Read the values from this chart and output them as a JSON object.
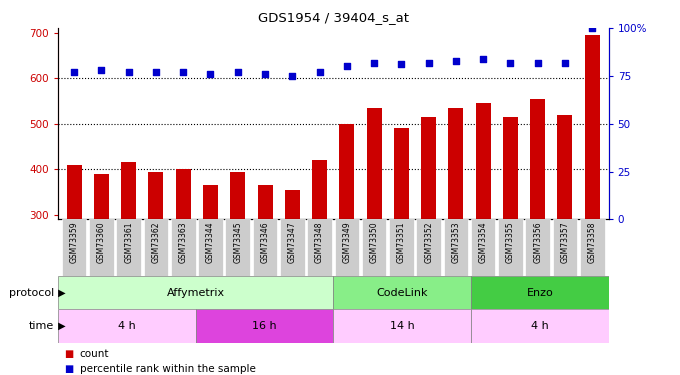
{
  "title": "GDS1954 / 39404_s_at",
  "samples": [
    "GSM73359",
    "GSM73360",
    "GSM73361",
    "GSM73362",
    "GSM73363",
    "GSM73344",
    "GSM73345",
    "GSM73346",
    "GSM73347",
    "GSM73348",
    "GSM73349",
    "GSM73350",
    "GSM73351",
    "GSM73352",
    "GSM73353",
    "GSM73354",
    "GSM73355",
    "GSM73356",
    "GSM73357",
    "GSM73358"
  ],
  "counts": [
    410,
    390,
    415,
    395,
    400,
    365,
    395,
    365,
    355,
    420,
    500,
    535,
    490,
    515,
    535,
    545,
    515,
    555,
    520,
    695
  ],
  "percentiles": [
    77,
    78,
    77,
    77,
    77,
    76,
    77,
    76,
    75,
    77,
    80,
    82,
    81,
    82,
    83,
    84,
    82,
    82,
    82,
    100
  ],
  "ylim_left": [
    290,
    710
  ],
  "ylim_right": [
    0,
    100
  ],
  "yticks_left": [
    300,
    400,
    500,
    600,
    700
  ],
  "yticks_right": [
    0,
    25,
    50,
    75,
    100
  ],
  "bar_color": "#cc0000",
  "dot_color": "#0000cc",
  "protocol_groups": [
    {
      "label": "Affymetrix",
      "start": 0,
      "end": 9,
      "color": "#ccffcc"
    },
    {
      "label": "CodeLink",
      "start": 10,
      "end": 14,
      "color": "#88ee88"
    },
    {
      "label": "Enzo",
      "start": 15,
      "end": 19,
      "color": "#44cc44"
    }
  ],
  "time_groups": [
    {
      "label": "4 h",
      "start": 0,
      "end": 4,
      "color": "#ffccff"
    },
    {
      "label": "16 h",
      "start": 5,
      "end": 9,
      "color": "#dd44dd"
    },
    {
      "label": "14 h",
      "start": 10,
      "end": 14,
      "color": "#ffccff"
    },
    {
      "label": "4 h",
      "start": 15,
      "end": 19,
      "color": "#ffccff"
    }
  ],
  "left_axis_color": "#cc0000",
  "right_axis_color": "#0000cc",
  "gridlines": [
    400,
    500,
    600
  ],
  "sample_label_bg": "#cccccc"
}
